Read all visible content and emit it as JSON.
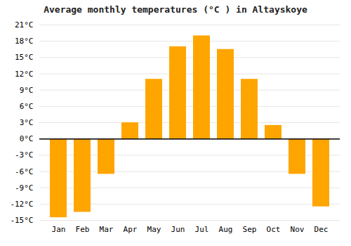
{
  "chart_data": {
    "type": "bar",
    "title": "Average monthly temperatures (°C ) in Altayskoye",
    "categories": [
      "Jan",
      "Feb",
      "Mar",
      "Apr",
      "May",
      "Jun",
      "Jul",
      "Aug",
      "Sep",
      "Oct",
      "Nov",
      "Dec"
    ],
    "values": [
      -14.5,
      -13.5,
      -6.5,
      3.0,
      11.0,
      17.0,
      19.0,
      16.5,
      11.0,
      2.5,
      -6.5,
      -12.5
    ],
    "color": "#FFA500",
    "ylim": [
      -15,
      21
    ],
    "yticks": [
      {
        "value": -15,
        "label": "-15°C"
      },
      {
        "value": -12,
        "label": "-12°C"
      },
      {
        "value": -9,
        "label": "-9°C"
      },
      {
        "value": -6,
        "label": "-6°C"
      },
      {
        "value": -3,
        "label": "-3°C"
      },
      {
        "value": 0,
        "label": "0°C"
      },
      {
        "value": 3,
        "label": "3°C"
      },
      {
        "value": 6,
        "label": "6°C"
      },
      {
        "value": 9,
        "label": "9°C"
      },
      {
        "value": 12,
        "label": "12°C"
      },
      {
        "value": 15,
        "label": "15°C"
      },
      {
        "value": 18,
        "label": "18°C"
      },
      {
        "value": 21,
        "label": "21°C"
      }
    ],
    "grid": true
  }
}
